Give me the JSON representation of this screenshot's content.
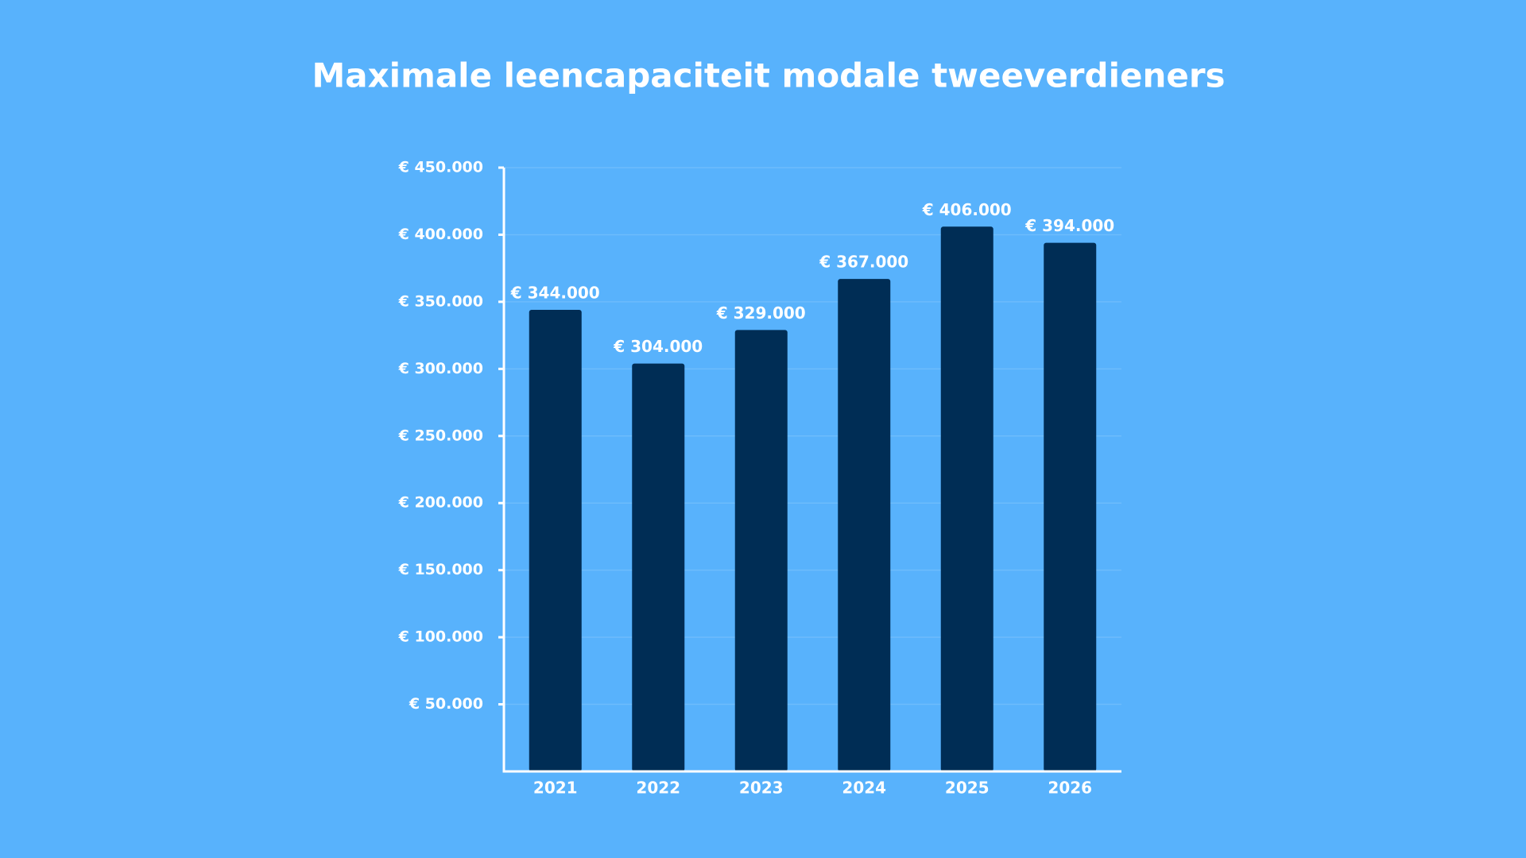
{
  "chart_data": {
    "type": "bar",
    "title": "Maximale leencapaciteit modale tweeverdieners",
    "categories": [
      "2021",
      "2022",
      "2023",
      "2024",
      "2025",
      "2026"
    ],
    "values": [
      344000,
      304000,
      329000,
      367000,
      406000,
      394000
    ],
    "value_labels": [
      "€ 344.000",
      "€ 304.000",
      "€ 329.000",
      "€ 367.000",
      "€ 406.000",
      "€ 394.000"
    ],
    "color": "#002d55",
    "ylim": [
      0,
      450000
    ],
    "yticks": [
      {
        "value": 50000,
        "label": "€ 50.000"
      },
      {
        "value": 100000,
        "label": "€ 100.000"
      },
      {
        "value": 150000,
        "label": "€ 150.000"
      },
      {
        "value": 200000,
        "label": "€ 200.000"
      },
      {
        "value": 250000,
        "label": "€ 250.000"
      },
      {
        "value": 300000,
        "label": "€ 300.000"
      },
      {
        "value": 350000,
        "label": "€ 350.000"
      },
      {
        "value": 400000,
        "label": "€ 400.000"
      },
      {
        "value": 450000,
        "label": "€ 450.000"
      }
    ],
    "grid": true
  }
}
